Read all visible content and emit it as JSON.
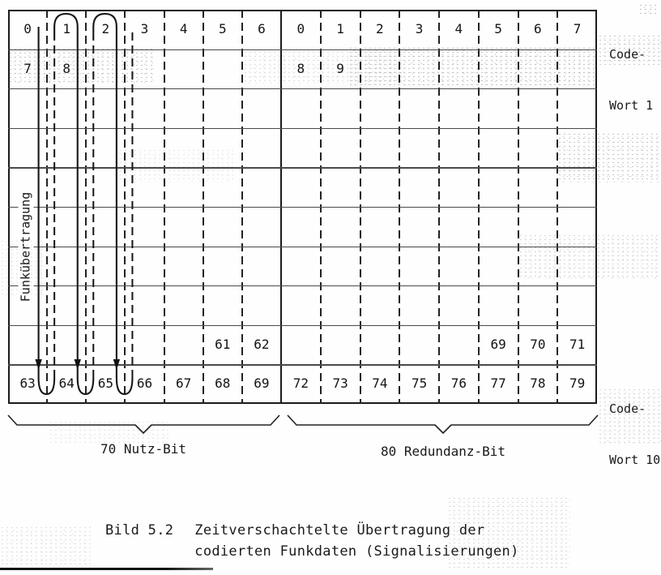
{
  "page": {
    "background": "#fefefe",
    "ink": "#1a1a1a"
  },
  "figure_caption": {
    "label": "Bild 5.2",
    "line1": "Zeitverschachtelte Übertragung der",
    "line2": "codierten Funkdaten (Signalisierungen)"
  },
  "labels": {
    "code_word_first": {
      "line1": "Code-",
      "line2": "Wort 1"
    },
    "code_word_last": {
      "line1": "Code-",
      "line2": "Wort 10"
    },
    "transmission_direction": "Funkübertragung",
    "left_brace": "70 Nutz-Bit",
    "right_brace": "80 Redundanz-Bit"
  },
  "grid": {
    "rows": [
      {
        "row": 1,
        "left": [
          "0",
          "1",
          "2",
          "3",
          "4",
          "5",
          "6"
        ],
        "right": [
          "0",
          "1",
          "2",
          "3",
          "4",
          "5",
          "6",
          "7"
        ]
      },
      {
        "row": 2,
        "left": [
          "7",
          "8",
          "",
          "",
          "",
          "",
          ""
        ],
        "right": [
          "8",
          "9",
          "",
          "",
          "",
          "",
          "",
          ""
        ]
      },
      {
        "row": 3,
        "left": [
          "",
          "",
          "",
          "",
          "",
          "",
          ""
        ],
        "right": [
          "",
          "",
          "",
          "",
          "",
          "",
          "",
          ""
        ]
      },
      {
        "row": 4,
        "left": [
          "",
          "",
          "",
          "",
          "",
          "",
          ""
        ],
        "right": [
          "",
          "",
          "",
          "",
          "",
          "",
          "",
          ""
        ]
      },
      {
        "row": 5,
        "left": [
          "",
          "",
          "",
          "",
          "",
          "",
          ""
        ],
        "right": [
          "",
          "",
          "",
          "",
          "",
          "",
          "",
          ""
        ]
      },
      {
        "row": 6,
        "left": [
          "",
          "",
          "",
          "",
          "",
          "",
          ""
        ],
        "right": [
          "",
          "",
          "",
          "",
          "",
          "",
          "",
          ""
        ]
      },
      {
        "row": 7,
        "left": [
          "",
          "",
          "",
          "",
          "",
          "",
          ""
        ],
        "right": [
          "",
          "",
          "",
          "",
          "",
          "",
          "",
          ""
        ]
      },
      {
        "row": 8,
        "left": [
          "",
          "",
          "",
          "",
          "",
          "",
          ""
        ],
        "right": [
          "",
          "",
          "",
          "",
          "",
          "",
          "",
          ""
        ]
      },
      {
        "row": 9,
        "left": [
          "",
          "",
          "",
          "",
          "",
          "61",
          "62"
        ],
        "right": [
          "",
          "",
          "",
          "",
          "",
          "69",
          "70",
          "71"
        ]
      },
      {
        "row": 10,
        "left": [
          "63",
          "64",
          "65",
          "66",
          "67",
          "68",
          "69"
        ],
        "right": [
          "72",
          "73",
          "74",
          "75",
          "76",
          "77",
          "78",
          "79"
        ]
      }
    ]
  },
  "interleave_path": {
    "bit_columns_shown": [
      0,
      1,
      2
    ],
    "direction": "down"
  }
}
